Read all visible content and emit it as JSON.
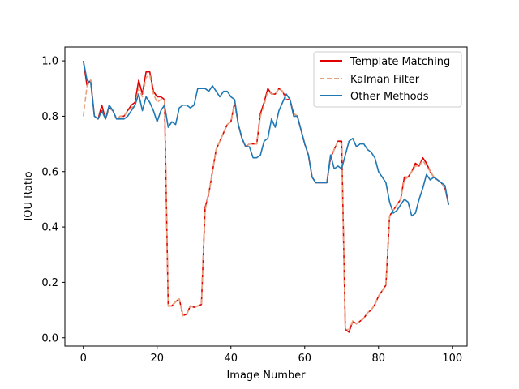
{
  "chart_data": {
    "type": "line",
    "title": "",
    "xlabel": "Image Number",
    "ylabel": "IOU Ratio",
    "xlim": [
      -5,
      104
    ],
    "ylim": [
      -0.03,
      1.05
    ],
    "xticks": [
      0,
      20,
      40,
      60,
      80,
      100
    ],
    "yticks": [
      0.0,
      0.2,
      0.4,
      0.6,
      0.8,
      1.0
    ],
    "xtick_labels": [
      "0",
      "20",
      "40",
      "60",
      "80",
      "100"
    ],
    "ytick_labels": [
      "0.0",
      "0.2",
      "0.4",
      "0.6",
      "0.8",
      "1.0"
    ],
    "grid": false,
    "legend_position": "top-right",
    "series": [
      {
        "name": "Template Matching",
        "color": "#e00000",
        "style": "solid",
        "values": [
          1.0,
          0.91,
          0.93,
          0.8,
          0.79,
          0.84,
          0.79,
          0.83,
          0.82,
          0.79,
          0.8,
          0.8,
          0.82,
          0.84,
          0.85,
          0.93,
          0.88,
          0.96,
          0.96,
          0.89,
          0.87,
          0.87,
          0.86,
          0.115,
          0.115,
          0.13,
          0.14,
          0.08,
          0.085,
          0.115,
          0.11,
          0.115,
          0.12,
          0.47,
          0.52,
          0.6,
          0.68,
          0.71,
          0.74,
          0.77,
          0.78,
          0.85,
          0.77,
          0.72,
          0.69,
          0.7,
          0.7,
          0.7,
          0.81,
          0.85,
          0.9,
          0.88,
          0.88,
          0.9,
          0.89,
          0.86,
          0.86,
          0.81,
          0.8,
          0.75,
          0.7,
          0.66,
          0.58,
          0.56,
          0.56,
          0.56,
          0.56,
          0.65,
          0.68,
          0.71,
          0.71,
          0.03,
          0.02,
          0.06,
          0.05,
          0.06,
          0.07,
          0.09,
          0.1,
          0.12,
          0.15,
          0.17,
          0.19,
          0.44,
          0.46,
          0.48,
          0.5,
          0.58,
          0.58,
          0.6,
          0.63,
          0.62,
          0.65,
          0.63,
          0.6,
          0.58,
          0.57,
          0.56,
          0.54,
          0.48
        ],
        "legend_label": "Template Matching"
      },
      {
        "name": "Kalman Filter",
        "color": "#e6a27c",
        "style": "dashed",
        "values": [
          0.8,
          0.91,
          0.93,
          0.8,
          0.79,
          0.82,
          0.79,
          0.83,
          0.82,
          0.79,
          0.8,
          0.8,
          0.82,
          0.83,
          0.84,
          0.9,
          0.87,
          0.94,
          0.95,
          0.88,
          0.85,
          0.86,
          0.86,
          0.115,
          0.115,
          0.13,
          0.14,
          0.08,
          0.085,
          0.115,
          0.11,
          0.115,
          0.12,
          0.46,
          0.52,
          0.6,
          0.68,
          0.71,
          0.74,
          0.77,
          0.78,
          0.85,
          0.77,
          0.72,
          0.69,
          0.7,
          0.7,
          0.7,
          0.8,
          0.84,
          0.89,
          0.88,
          0.88,
          0.9,
          0.89,
          0.86,
          0.86,
          0.81,
          0.8,
          0.75,
          0.7,
          0.66,
          0.58,
          0.56,
          0.56,
          0.56,
          0.56,
          0.65,
          0.68,
          0.71,
          0.7,
          0.03,
          0.03,
          0.06,
          0.05,
          0.06,
          0.07,
          0.09,
          0.1,
          0.12,
          0.15,
          0.17,
          0.19,
          0.44,
          0.46,
          0.48,
          0.5,
          0.57,
          0.58,
          0.6,
          0.62,
          0.62,
          0.64,
          0.62,
          0.6,
          0.58,
          0.57,
          0.56,
          0.54,
          0.48
        ],
        "legend_label": "Kalman Filter"
      },
      {
        "name": "Other Methods",
        "color": "#1f77b4",
        "style": "solid",
        "values": [
          1.0,
          0.93,
          0.92,
          0.8,
          0.79,
          0.82,
          0.79,
          0.84,
          0.82,
          0.79,
          0.79,
          0.79,
          0.8,
          0.82,
          0.84,
          0.88,
          0.82,
          0.87,
          0.85,
          0.82,
          0.78,
          0.82,
          0.84,
          0.76,
          0.78,
          0.77,
          0.83,
          0.84,
          0.84,
          0.83,
          0.84,
          0.9,
          0.9,
          0.9,
          0.89,
          0.91,
          0.89,
          0.87,
          0.89,
          0.89,
          0.87,
          0.86,
          0.77,
          0.72,
          0.69,
          0.69,
          0.65,
          0.65,
          0.66,
          0.71,
          0.72,
          0.79,
          0.76,
          0.82,
          0.85,
          0.88,
          0.86,
          0.8,
          0.8,
          0.75,
          0.7,
          0.66,
          0.58,
          0.56,
          0.56,
          0.56,
          0.56,
          0.66,
          0.61,
          0.62,
          0.61,
          0.66,
          0.71,
          0.72,
          0.69,
          0.7,
          0.7,
          0.68,
          0.67,
          0.65,
          0.6,
          0.58,
          0.56,
          0.49,
          0.45,
          0.46,
          0.48,
          0.5,
          0.49,
          0.44,
          0.45,
          0.5,
          0.54,
          0.59,
          0.57,
          0.58,
          0.57,
          0.56,
          0.55,
          0.48
        ],
        "legend_label": "Other Methods"
      }
    ]
  }
}
